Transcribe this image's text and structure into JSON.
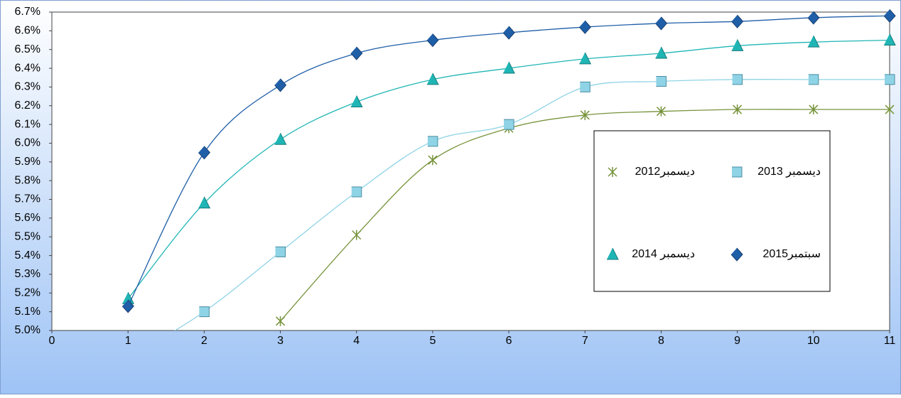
{
  "chart_data": {
    "type": "line",
    "x": [
      1,
      2,
      3,
      4,
      5,
      6,
      7,
      8,
      9,
      10,
      11
    ],
    "series": [
      {
        "name": "ديسمبر2012",
        "color": "#77933c",
        "marker": "star",
        "values": [
          null,
          null,
          5.05,
          5.51,
          5.91,
          6.08,
          6.15,
          6.17,
          6.18,
          6.18,
          6.18
        ]
      },
      {
        "name": "ديسمبر 2013",
        "color": "#8fd3e6",
        "marker": "square",
        "values": [
          4.85,
          5.1,
          5.42,
          5.74,
          6.01,
          6.1,
          6.3,
          6.33,
          6.34,
          6.34,
          6.34
        ]
      },
      {
        "name": "ديسمبر 2014",
        "color": "#1fb5b5",
        "marker": "triangle",
        "values": [
          5.17,
          5.68,
          6.02,
          6.22,
          6.34,
          6.4,
          6.45,
          6.48,
          6.52,
          6.54,
          6.55
        ]
      },
      {
        "name": "سبتمبر2015",
        "color": "#1f5fa8",
        "marker": "diamond",
        "values": [
          5.13,
          5.95,
          6.31,
          6.48,
          6.55,
          6.59,
          6.62,
          6.64,
          6.65,
          6.67,
          6.68
        ]
      }
    ],
    "xlim": [
      0,
      11
    ],
    "xticks": [
      0,
      1,
      2,
      3,
      4,
      5,
      6,
      7,
      8,
      9,
      10,
      11
    ],
    "ylim": [
      5.0,
      6.7
    ],
    "yticks": [
      {
        "value": 5.0,
        "label": "5.0%"
      },
      {
        "value": 5.1,
        "label": "5.1%"
      },
      {
        "value": 5.2,
        "label": "5.2%"
      },
      {
        "value": 5.3,
        "label": "5.3%"
      },
      {
        "value": 5.4,
        "label": "5.4%"
      },
      {
        "value": 5.5,
        "label": "5.5%"
      },
      {
        "value": 5.6,
        "label": "5.6%"
      },
      {
        "value": 5.7,
        "label": "5.7%"
      },
      {
        "value": 5.8,
        "label": "5.8%"
      },
      {
        "value": 5.9,
        "label": "5.9%"
      },
      {
        "value": 6.0,
        "label": "6.0%"
      },
      {
        "value": 6.1,
        "label": "6.1%"
      },
      {
        "value": 6.2,
        "label": "6.2%"
      },
      {
        "value": 6.3,
        "label": "6.3%"
      },
      {
        "value": 6.4,
        "label": "6.4%"
      },
      {
        "value": 6.5,
        "label": "6.5%"
      },
      {
        "value": 6.6,
        "label": "6.6%"
      },
      {
        "value": 6.7,
        "label": "6.7%"
      }
    ],
    "grid": false,
    "smooth": true
  }
}
